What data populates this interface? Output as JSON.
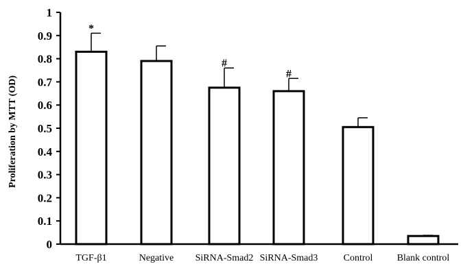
{
  "chart_data": {
    "type": "bar",
    "title": "",
    "xlabel": "",
    "ylabel": "Proliferation by MTT (OD)",
    "ylim": [
      0,
      1
    ],
    "yticks": [
      "0",
      "0.1",
      "0.2",
      "0.3",
      "0.4",
      "0.5",
      "0.6",
      "0.7",
      "0.8",
      "0.9",
      "1"
    ],
    "categories": [
      "TGF-β1",
      "Negative",
      "SiRNA-Smad2",
      "SiRNA-Smad3",
      "Control",
      "Blank control"
    ],
    "values": [
      0.83,
      0.79,
      0.675,
      0.66,
      0.505,
      0.035
    ],
    "error": [
      0.08,
      0.065,
      0.085,
      0.055,
      0.04,
      0.003
    ],
    "annotations": [
      "*",
      "",
      "#",
      "#",
      "",
      ""
    ],
    "bar_fill": "#ffffff",
    "bar_stroke": "#000000",
    "grid": false,
    "legend": "none"
  }
}
